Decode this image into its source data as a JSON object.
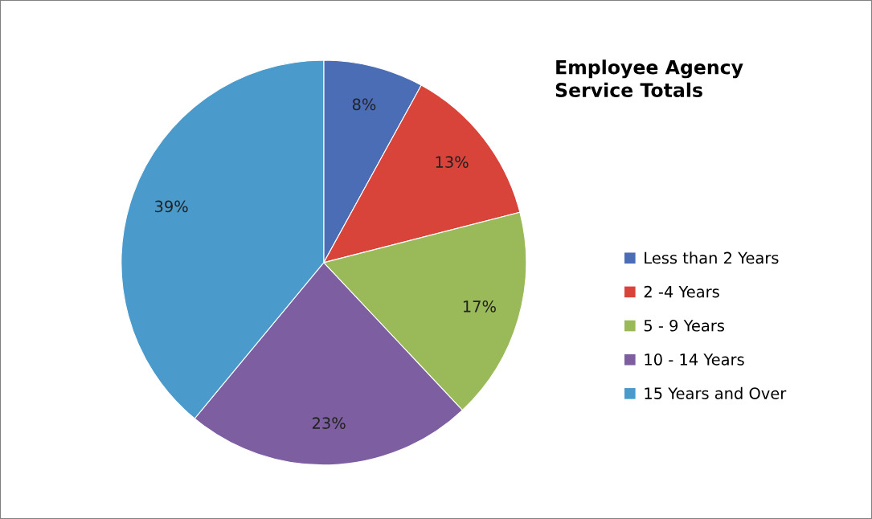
{
  "chart_data": {
    "type": "pie",
    "title": "Employee Agency\nService Totals",
    "categories": [
      "Less than 2 Years",
      "2 -4 Years",
      "5 - 9 Years",
      "10 - 14 Years",
      "15 Years and Over"
    ],
    "values": [
      8,
      13,
      17,
      23,
      39
    ],
    "colors": [
      "#4a6db5",
      "#d8433a",
      "#9aba59",
      "#7c5ea1",
      "#4a9acb"
    ],
    "value_labels": [
      "8%",
      "13%",
      "17%",
      "23%",
      "39%"
    ],
    "legend": "right"
  }
}
